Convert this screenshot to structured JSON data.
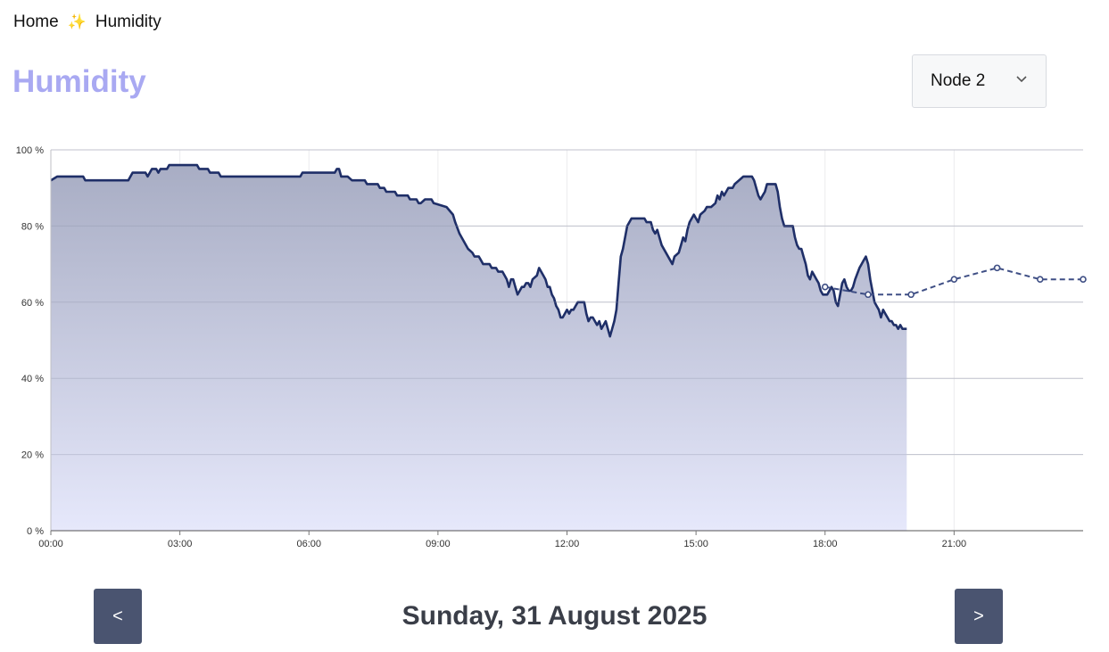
{
  "breadcrumb": {
    "home": "Home",
    "separator": "✨",
    "current": "Humidity"
  },
  "page_title": "Humidity",
  "node_select": {
    "value": "Node 2",
    "icon": "chevron-down-icon"
  },
  "nav": {
    "prev_label": "<",
    "next_label": ">"
  },
  "date_title": "Sunday, 31 August 2025",
  "colors": {
    "title": "#a9a9f2",
    "line": "#1f2f68",
    "forecast": "#3f4f85",
    "button": "#4a5470",
    "fill_top": "#a8adc4",
    "fill_bottom": "#e6e8fb"
  },
  "chart_data": {
    "type": "area",
    "title": "",
    "xlabel": "",
    "ylabel": "",
    "x_unit": "hour of day",
    "xlim": [
      0,
      24
    ],
    "ylim": [
      0,
      100
    ],
    "x_ticks": [
      {
        "value": 0,
        "label": "00:00"
      },
      {
        "value": 3,
        "label": "03:00"
      },
      {
        "value": 6,
        "label": "06:00"
      },
      {
        "value": 9,
        "label": "09:00"
      },
      {
        "value": 12,
        "label": "12:00"
      },
      {
        "value": 15,
        "label": "15:00"
      },
      {
        "value": 18,
        "label": "18:00"
      },
      {
        "value": 21,
        "label": "21:00"
      }
    ],
    "y_ticks": [
      {
        "value": 0,
        "label": "0 %"
      },
      {
        "value": 20,
        "label": "20 %"
      },
      {
        "value": 40,
        "label": "40 %"
      },
      {
        "value": 60,
        "label": "60 %"
      },
      {
        "value": 80,
        "label": "80 %"
      },
      {
        "value": 100,
        "label": "100 %"
      }
    ],
    "grid": true,
    "series": [
      {
        "style": "area",
        "points": [
          [
            0,
            92
          ],
          [
            0.15,
            93
          ],
          [
            0.75,
            93
          ],
          [
            0.8,
            92
          ],
          [
            1.8,
            92
          ],
          [
            1.85,
            93
          ],
          [
            1.9,
            94
          ],
          [
            2.2,
            94
          ],
          [
            2.25,
            93
          ],
          [
            2.3,
            94
          ],
          [
            2.35,
            95
          ],
          [
            2.45,
            95
          ],
          [
            2.5,
            94
          ],
          [
            2.55,
            95
          ],
          [
            2.6,
            95
          ],
          [
            2.7,
            95
          ],
          [
            2.75,
            96
          ],
          [
            3.4,
            96
          ],
          [
            3.45,
            95
          ],
          [
            3.65,
            95
          ],
          [
            3.7,
            94
          ],
          [
            3.9,
            94
          ],
          [
            3.95,
            93
          ],
          [
            5.8,
            93
          ],
          [
            5.85,
            94
          ],
          [
            6.6,
            94
          ],
          [
            6.65,
            95
          ],
          [
            6.7,
            95
          ],
          [
            6.75,
            93
          ],
          [
            6.9,
            93
          ],
          [
            7,
            92
          ],
          [
            7.3,
            92
          ],
          [
            7.35,
            91
          ],
          [
            7.6,
            91
          ],
          [
            7.65,
            90
          ],
          [
            7.75,
            90
          ],
          [
            7.8,
            89
          ],
          [
            8,
            89
          ],
          [
            8.05,
            88
          ],
          [
            8.3,
            88
          ],
          [
            8.35,
            87
          ],
          [
            8.5,
            87
          ],
          [
            8.55,
            86
          ],
          [
            8.6,
            86
          ],
          [
            8.7,
            87
          ],
          [
            8.85,
            87
          ],
          [
            8.9,
            86
          ],
          [
            9.2,
            85
          ],
          [
            9.35,
            83
          ],
          [
            9.4,
            81
          ],
          [
            9.5,
            78
          ],
          [
            9.7,
            74
          ],
          [
            9.8,
            73
          ],
          [
            9.85,
            72
          ],
          [
            9.95,
            72
          ],
          [
            10,
            71
          ],
          [
            10.05,
            70
          ],
          [
            10.2,
            70
          ],
          [
            10.25,
            69
          ],
          [
            10.35,
            69
          ],
          [
            10.4,
            68
          ],
          [
            10.5,
            68
          ],
          [
            10.55,
            67
          ],
          [
            10.6,
            66
          ],
          [
            10.65,
            64
          ],
          [
            10.7,
            66
          ],
          [
            10.75,
            66
          ],
          [
            10.8,
            64
          ],
          [
            10.85,
            62
          ],
          [
            10.9,
            63
          ],
          [
            10.95,
            64
          ],
          [
            11,
            64
          ],
          [
            11.05,
            65
          ],
          [
            11.1,
            65
          ],
          [
            11.15,
            64
          ],
          [
            11.2,
            66
          ],
          [
            11.3,
            67
          ],
          [
            11.35,
            69
          ],
          [
            11.45,
            67
          ],
          [
            11.5,
            66
          ],
          [
            11.55,
            64
          ],
          [
            11.6,
            64
          ],
          [
            11.65,
            62
          ],
          [
            11.7,
            61
          ],
          [
            11.75,
            59
          ],
          [
            11.8,
            58
          ],
          [
            11.85,
            56
          ],
          [
            11.9,
            56
          ],
          [
            11.95,
            57
          ],
          [
            12,
            58
          ],
          [
            12.05,
            57
          ],
          [
            12.1,
            58
          ],
          [
            12.15,
            58
          ],
          [
            12.2,
            59
          ],
          [
            12.25,
            60
          ],
          [
            12.4,
            60
          ],
          [
            12.45,
            57
          ],
          [
            12.5,
            55
          ],
          [
            12.55,
            56
          ],
          [
            12.6,
            56
          ],
          [
            12.65,
            55
          ],
          [
            12.7,
            54
          ],
          [
            12.75,
            55
          ],
          [
            12.8,
            53
          ],
          [
            12.85,
            54
          ],
          [
            12.9,
            55
          ],
          [
            12.95,
            53
          ],
          [
            13,
            51
          ],
          [
            13.05,
            53
          ],
          [
            13.1,
            55
          ],
          [
            13.15,
            58
          ],
          [
            13.2,
            65
          ],
          [
            13.25,
            72
          ],
          [
            13.3,
            74
          ],
          [
            13.35,
            77
          ],
          [
            13.4,
            80
          ],
          [
            13.45,
            81
          ],
          [
            13.5,
            82
          ],
          [
            13.8,
            82
          ],
          [
            13.85,
            81
          ],
          [
            13.95,
            81
          ],
          [
            14,
            79
          ],
          [
            14.05,
            78
          ],
          [
            14.1,
            79
          ],
          [
            14.15,
            77
          ],
          [
            14.2,
            75
          ],
          [
            14.3,
            73
          ],
          [
            14.4,
            71
          ],
          [
            14.45,
            70
          ],
          [
            14.5,
            72
          ],
          [
            14.6,
            73
          ],
          [
            14.65,
            75
          ],
          [
            14.7,
            77
          ],
          [
            14.75,
            76
          ],
          [
            14.8,
            79
          ],
          [
            14.85,
            81
          ],
          [
            14.9,
            82
          ],
          [
            14.95,
            83
          ],
          [
            15,
            82
          ],
          [
            15.05,
            81
          ],
          [
            15.1,
            83
          ],
          [
            15.2,
            84
          ],
          [
            15.25,
            85
          ],
          [
            15.35,
            85
          ],
          [
            15.45,
            86
          ],
          [
            15.5,
            88
          ],
          [
            15.55,
            87
          ],
          [
            15.6,
            89
          ],
          [
            15.65,
            88
          ],
          [
            15.7,
            89
          ],
          [
            15.75,
            90
          ],
          [
            15.85,
            90
          ],
          [
            15.9,
            91
          ],
          [
            16,
            92
          ],
          [
            16.1,
            93
          ],
          [
            16.3,
            93
          ],
          [
            16.35,
            92
          ],
          [
            16.4,
            90
          ],
          [
            16.45,
            88
          ],
          [
            16.5,
            87
          ],
          [
            16.55,
            88
          ],
          [
            16.6,
            89
          ],
          [
            16.65,
            91
          ],
          [
            16.85,
            91
          ],
          [
            16.9,
            89
          ],
          [
            16.95,
            85
          ],
          [
            17,
            82
          ],
          [
            17.05,
            80
          ],
          [
            17.25,
            80
          ],
          [
            17.3,
            77
          ],
          [
            17.35,
            75
          ],
          [
            17.4,
            74
          ],
          [
            17.45,
            74
          ],
          [
            17.5,
            72
          ],
          [
            17.55,
            70
          ],
          [
            17.6,
            67
          ],
          [
            17.65,
            66
          ],
          [
            17.7,
            68
          ],
          [
            17.75,
            67
          ],
          [
            17.8,
            66
          ],
          [
            17.85,
            65
          ],
          [
            17.9,
            63
          ],
          [
            17.95,
            62
          ],
          [
            18.05,
            62
          ],
          [
            18.15,
            64
          ],
          [
            18.2,
            63
          ],
          [
            18.25,
            60
          ],
          [
            18.3,
            59
          ],
          [
            18.35,
            62
          ],
          [
            18.4,
            65
          ],
          [
            18.45,
            66
          ],
          [
            18.5,
            64
          ],
          [
            18.55,
            63
          ],
          [
            18.6,
            63
          ],
          [
            18.65,
            64
          ],
          [
            18.7,
            66
          ],
          [
            18.8,
            69
          ],
          [
            18.85,
            70
          ],
          [
            18.9,
            71
          ],
          [
            18.95,
            72
          ],
          [
            19,
            70
          ],
          [
            19.05,
            66
          ],
          [
            19.1,
            63
          ],
          [
            19.15,
            60
          ],
          [
            19.2,
            59
          ],
          [
            19.25,
            58
          ],
          [
            19.3,
            56
          ],
          [
            19.35,
            58
          ],
          [
            19.4,
            57
          ],
          [
            19.45,
            56
          ],
          [
            19.5,
            55
          ],
          [
            19.55,
            55
          ],
          [
            19.6,
            54
          ],
          [
            19.65,
            54
          ],
          [
            19.7,
            53
          ],
          [
            19.75,
            54
          ],
          [
            19.8,
            53
          ],
          [
            19.9,
            53
          ]
        ]
      },
      {
        "style": "dashed",
        "points": [
          [
            18,
            64
          ],
          [
            19,
            62
          ],
          [
            20,
            62
          ],
          [
            21,
            66
          ],
          [
            22,
            69
          ],
          [
            23,
            66
          ],
          [
            24,
            66
          ]
        ]
      }
    ]
  }
}
